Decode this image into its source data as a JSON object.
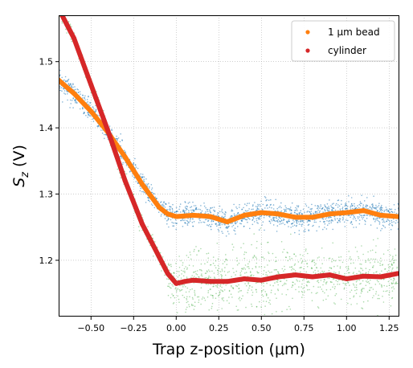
{
  "chart_data": {
    "type": "scatter",
    "xlabel": "Trap z-position (μm)",
    "ylabel": "S_z (V)",
    "xlim": [
      -0.69,
      1.31
    ],
    "ylim": [
      1.115,
      1.57
    ],
    "grid": true,
    "legend_position": "top-right",
    "x_ticks": [
      -0.5,
      -0.25,
      0.0,
      0.25,
      0.5,
      0.75,
      1.0,
      1.25
    ],
    "x_tick_labels": [
      "−0.50",
      "−0.25",
      "0.00",
      "0.25",
      "0.50",
      "0.75",
      "1.00",
      "1.25"
    ],
    "y_ticks": [
      1.2,
      1.3,
      1.4,
      1.5
    ],
    "y_tick_labels": [
      "1.2",
      "1.3",
      "1.4",
      "1.5"
    ],
    "legend": [
      {
        "label": "1 μm bead",
        "color": "#ff7f0e"
      },
      {
        "label": "cylinder",
        "color": "#d62728"
      }
    ],
    "series": [
      {
        "name": "1 μm bead",
        "color": "#ff7f0e",
        "scatter_color": "#1f77b4",
        "x": [
          -0.69,
          -0.6,
          -0.5,
          -0.4,
          -0.3,
          -0.2,
          -0.1,
          -0.05,
          0.0,
          0.05,
          0.1,
          0.2,
          0.3,
          0.4,
          0.5,
          0.6,
          0.7,
          0.8,
          0.9,
          1.0,
          1.1,
          1.2,
          1.3
        ],
        "y": [
          1.472,
          1.452,
          1.425,
          1.393,
          1.356,
          1.315,
          1.28,
          1.27,
          1.266,
          1.267,
          1.268,
          1.266,
          1.258,
          1.268,
          1.272,
          1.27,
          1.265,
          1.265,
          1.27,
          1.272,
          1.275,
          1.268,
          1.266
        ]
      },
      {
        "name": "cylinder",
        "color": "#d62728",
        "scatter_color": "#2ca02c",
        "x": [
          -0.69,
          -0.6,
          -0.5,
          -0.4,
          -0.3,
          -0.2,
          -0.1,
          -0.05,
          0.0,
          0.05,
          0.1,
          0.2,
          0.3,
          0.4,
          0.5,
          0.6,
          0.7,
          0.8,
          0.9,
          1.0,
          1.1,
          1.2,
          1.3
        ],
        "y": [
          1.58,
          1.535,
          1.465,
          1.395,
          1.32,
          1.255,
          1.205,
          1.18,
          1.165,
          1.168,
          1.17,
          1.168,
          1.168,
          1.172,
          1.17,
          1.175,
          1.178,
          1.175,
          1.178,
          1.172,
          1.176,
          1.175,
          1.18
        ]
      }
    ]
  }
}
